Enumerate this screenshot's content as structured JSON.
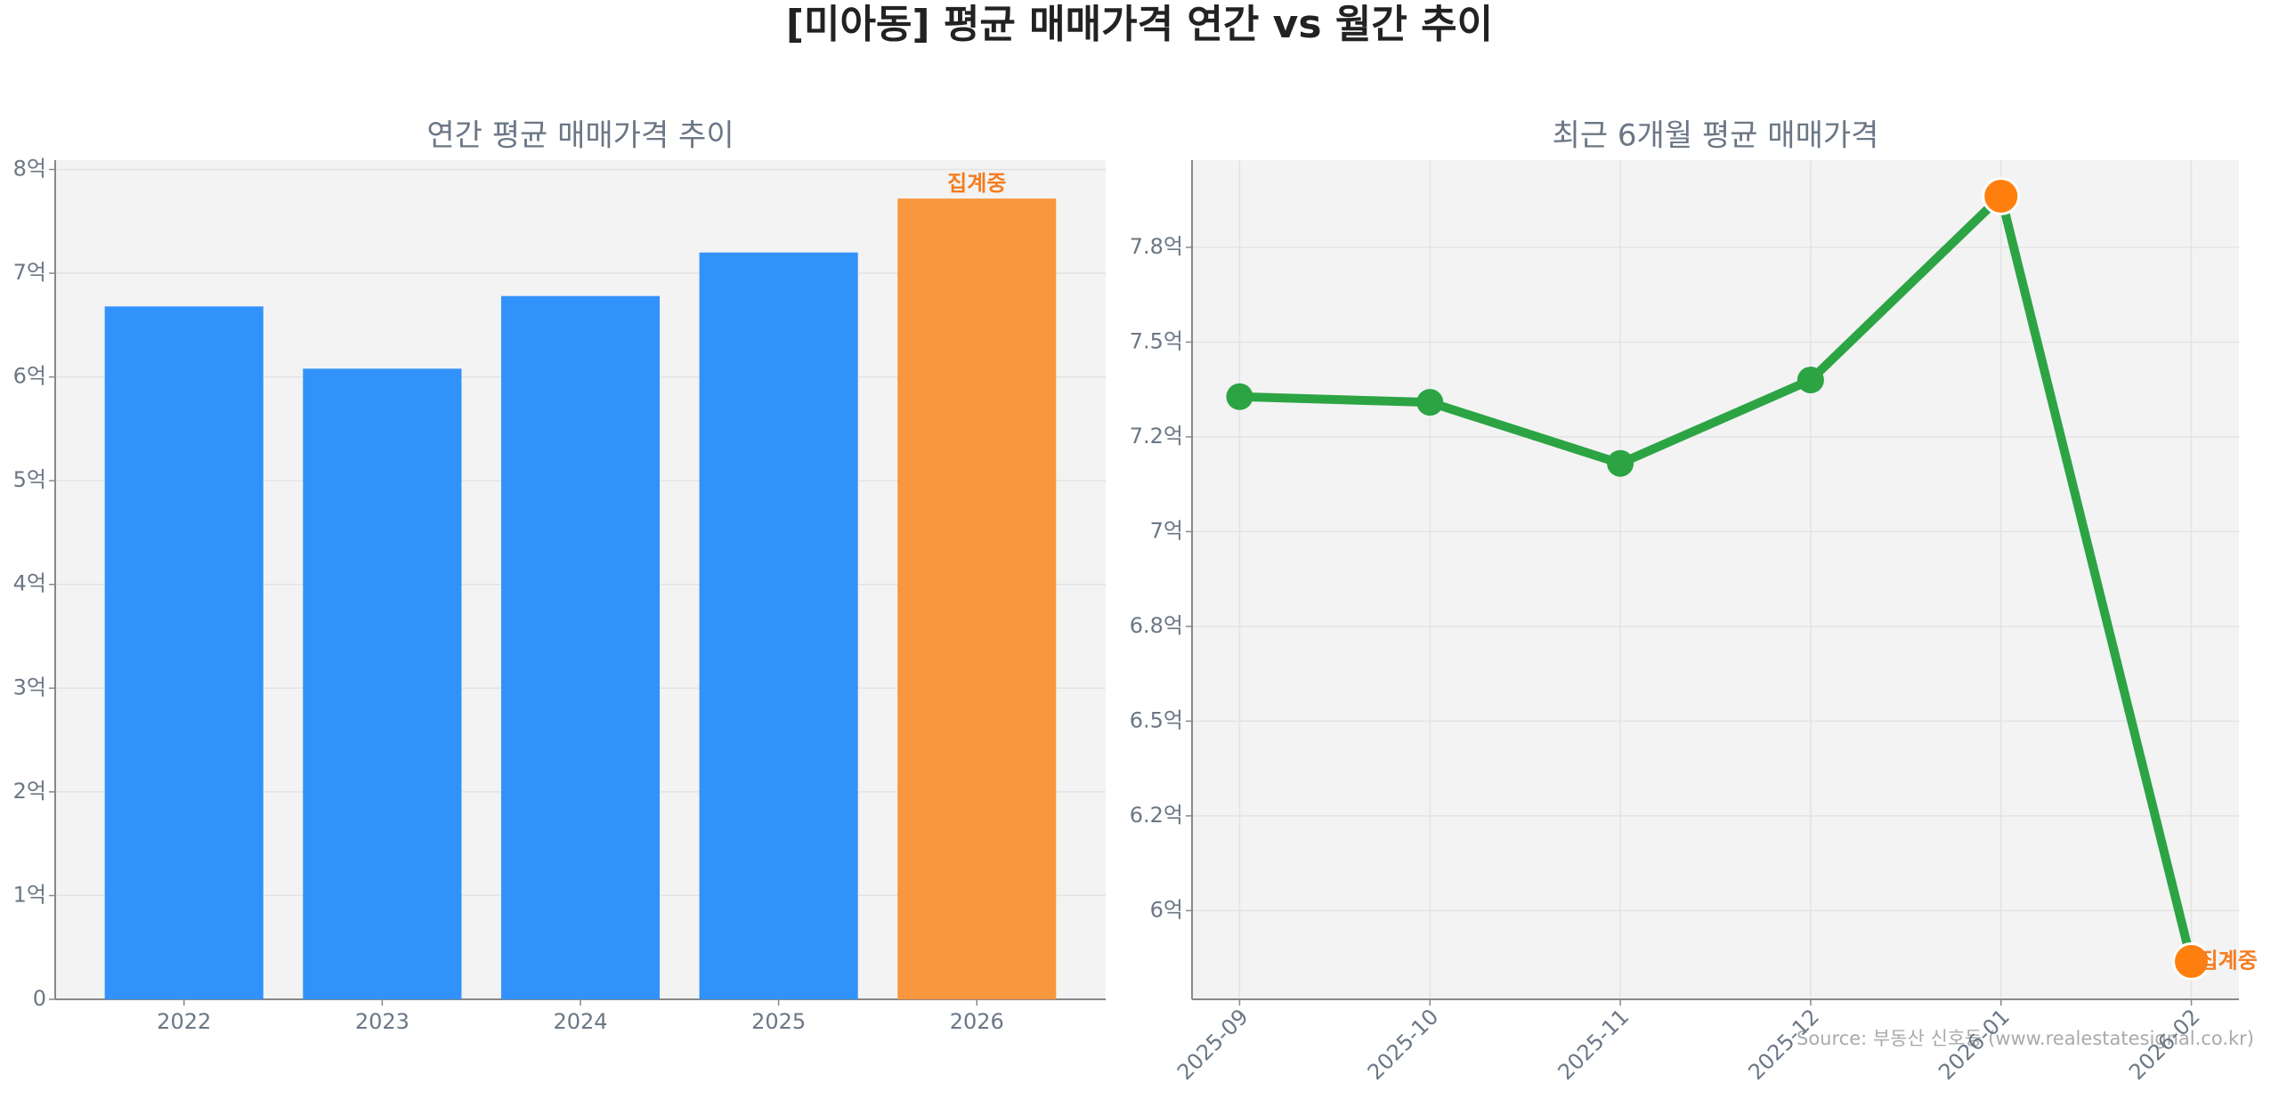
{
  "title": "[미아동] 평균 매매가격 연간 vs 월간 추이",
  "source": "Source: 부동산 신호등 (www.realestatesignal.co.kr)",
  "chart_data": [
    {
      "type": "bar",
      "title": "연간 평균 매매가격 추이",
      "categories": [
        "2022",
        "2023",
        "2024",
        "2025",
        "2026"
      ],
      "values": [
        6.68,
        6.08,
        6.78,
        7.2,
        7.72
      ],
      "colors": [
        "#3192fb",
        "#3192fb",
        "#3192fb",
        "#3192fb",
        "#f9973e"
      ],
      "ylim": [
        0,
        8.09
      ],
      "yticks": [
        0,
        {
          "value": 1,
          "label": "1억"
        },
        {
          "value": 2,
          "label": "2억"
        },
        {
          "value": 3,
          "label": "3억"
        },
        {
          "value": 4,
          "label": "4억"
        },
        {
          "value": 5,
          "label": "5억"
        },
        {
          "value": 6,
          "label": "6억"
        },
        {
          "value": 7,
          "label": "7억"
        },
        {
          "value": 8,
          "label": "8억"
        }
      ],
      "grid": true,
      "annotation": {
        "text": "집계중",
        "category": "2026",
        "color": "#f57c1f"
      }
    },
    {
      "type": "line",
      "title": "최근 6개월 평균 매매가격",
      "categories": [
        "2025-09",
        "2025-10",
        "2025-11",
        "2025-12",
        "2026-01",
        "2026-02"
      ],
      "values": [
        7.356,
        7.341,
        7.18,
        7.4,
        7.885,
        5.866
      ],
      "color": "#2ca444",
      "marker_colors": [
        "#2ca444",
        "#2ca444",
        "#2ca444",
        "#2ca444",
        "#ff7f0e",
        "#ff7f0e"
      ],
      "ylim": [
        5.766,
        7.98
      ],
      "yticks": [
        {
          "value": 6,
          "label": "6억"
        },
        {
          "value": 6.25,
          "label": "6.2억"
        },
        {
          "value": 6.5,
          "label": "6.5억"
        },
        {
          "value": 6.75,
          "label": "6.8억"
        },
        {
          "value": 7,
          "label": "7억"
        },
        {
          "value": 7.25,
          "label": "7.2억"
        },
        {
          "value": 7.5,
          "label": "7.5억"
        },
        {
          "value": 7.75,
          "label": "7.8억"
        }
      ],
      "grid": true,
      "annotation": {
        "text": "집계중",
        "category": "2026-02",
        "color": "#f57c1f"
      }
    }
  ]
}
